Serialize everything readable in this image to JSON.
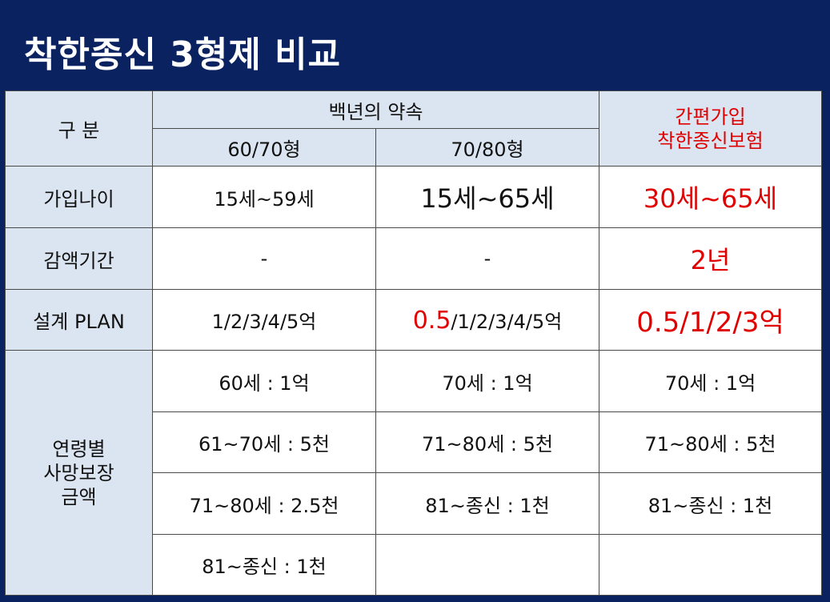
{
  "title": "착한종신 3형제 비교",
  "table": {
    "header": {
      "category": "구  분",
      "group": "백년의 약속",
      "group_columns": [
        "60/70형",
        "70/80형"
      ],
      "product": [
        "간편가입",
        "착한종신보험"
      ]
    },
    "rows": [
      {
        "label": "가입나이",
        "cells": [
          "15세~59세",
          "15세~65세",
          "30세~65세"
        ]
      },
      {
        "label": "감액기간",
        "cells": [
          "-",
          "-",
          "2년"
        ]
      },
      {
        "label": "설계 PLAN",
        "cells": [
          "1/2/3/4/5억",
          [
            "0.5",
            "/1/2/3/4/5억"
          ],
          "0.5/1/2/3억"
        ]
      }
    ],
    "coverage": {
      "label": [
        "연령별",
        "사망보장",
        "금액"
      ],
      "columns": [
        [
          "60세 : 1억",
          "61~70세 : 5천",
          "71~80세 : 2.5천",
          "81~종신 : 1천"
        ],
        [
          "70세 : 1억",
          "71~80세 : 5천",
          "81~종신 : 1천"
        ],
        [
          "70세 : 1억",
          "71~80세 : 5천",
          "81~종신 : 1천"
        ]
      ]
    }
  }
}
